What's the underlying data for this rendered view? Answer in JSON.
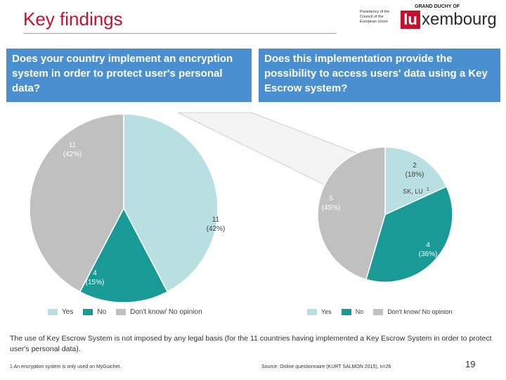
{
  "title": "Key findings",
  "logo": {
    "grand_duchy": "GRAND DUCHY OF",
    "presidency": "Presidency of the Council of the European Union",
    "lu": "lu",
    "rest": "xembourg"
  },
  "questions": {
    "left": "Does your country implement an encryption system in order to protect user's personal data?",
    "right": "Does this implementation provide the possibility to access users' data using a Key Escrow system?"
  },
  "colors": {
    "yes": "#b8e0e2",
    "no": "#1a9a96",
    "dont_know": "#c0c0c0",
    "question_bg": "#4a90d0",
    "title": "#c8102e"
  },
  "chart_data": [
    {
      "type": "pie",
      "title": "Does your country implement an encryption system in order to protect user's personal data?",
      "categories": [
        "Yes",
        "No",
        "Don't know/ No opinion"
      ],
      "values": [
        11,
        4,
        11
      ],
      "labels": [
        {
          "count": "11",
          "pct": "(42%)"
        },
        {
          "count": "4",
          "pct": "(15%)"
        },
        {
          "count": "11",
          "pct": "(42%)"
        }
      ],
      "legend": [
        "Yes",
        "No",
        "Don't know/ No opinion"
      ],
      "legend_position": "bottom"
    },
    {
      "type": "pie",
      "title": "Does this implementation provide the possibility to access users' data using a Key Escrow system?",
      "categories": [
        "Yes",
        "No",
        "Don't know/ No opinion"
      ],
      "values": [
        2,
        4,
        5
      ],
      "labels": [
        {
          "count": "2",
          "pct": "(18%)"
        },
        {
          "count": "4",
          "pct": "(36%)"
        },
        {
          "count": "5",
          "pct": "(45%)"
        }
      ],
      "annotation": "SK, LU",
      "annotation_superscript": "1",
      "legend": [
        "Yes",
        "No",
        "Don't know/ No opinion"
      ],
      "legend_position": "bottom"
    }
  ],
  "footnote": "The use of Key Escrow System is not imposed by any legal basis (for the 11 countries having implemented a Key Escrow System in order to protect user's personal data).",
  "footer_left": "1 An encryption system is only used on MyGuichet.",
  "footer_source": "Source: Online questionnaire (KURT SALMON 2015), n=26",
  "page_number": "19"
}
